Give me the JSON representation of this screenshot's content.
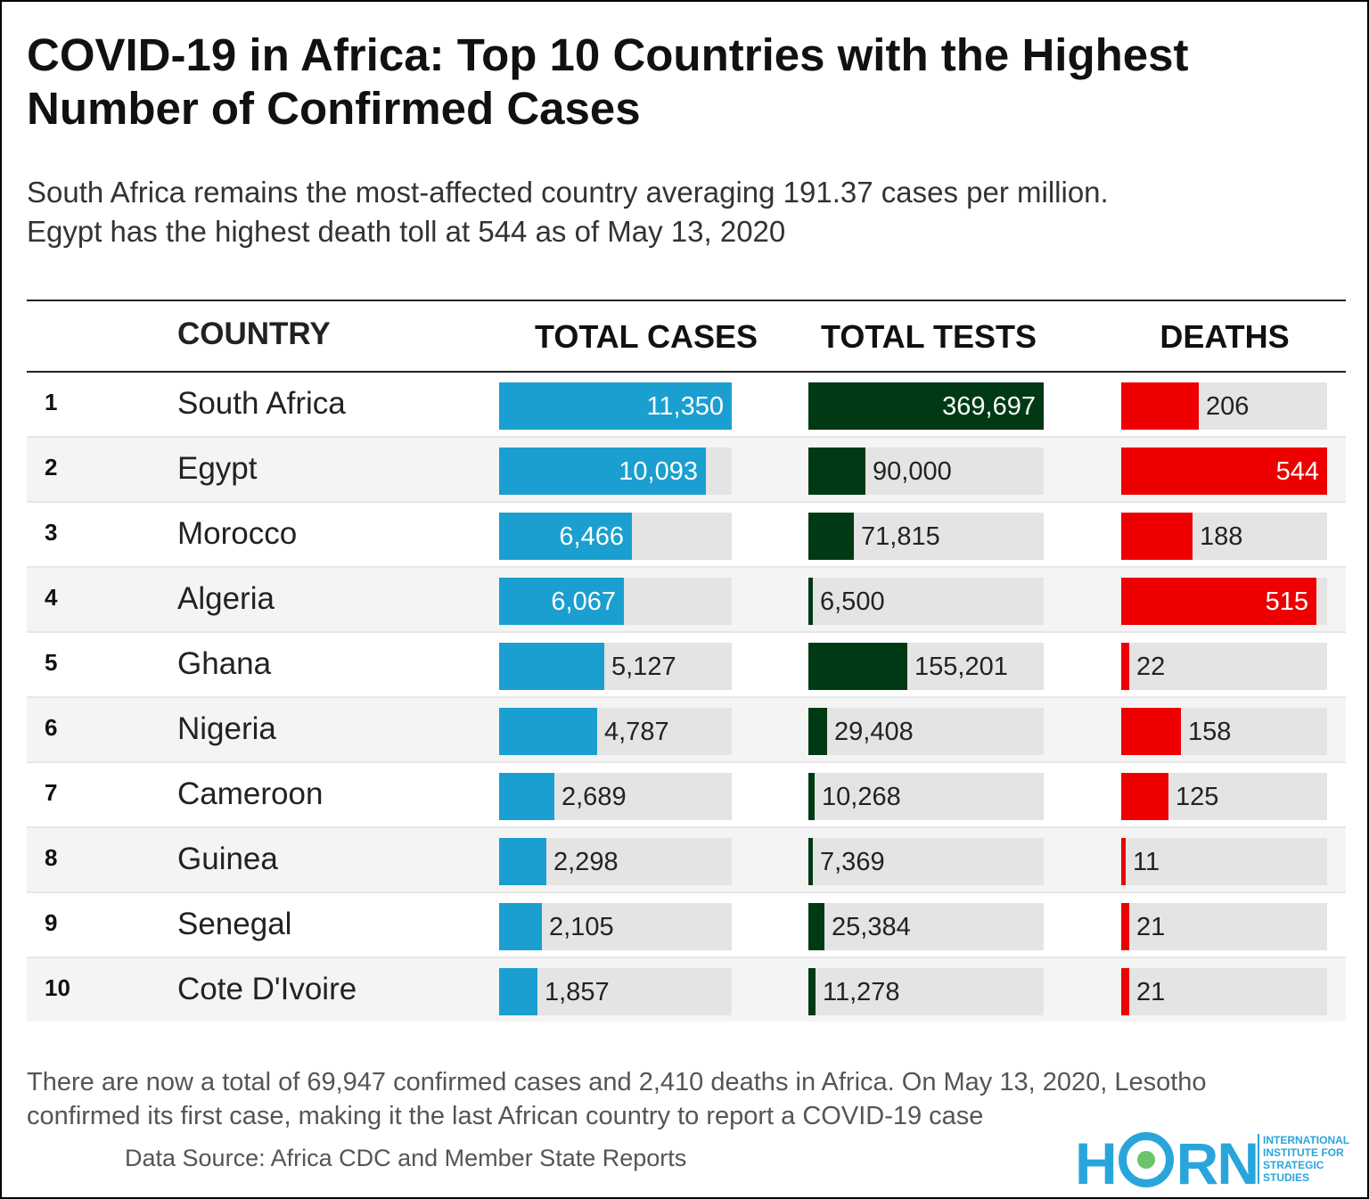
{
  "header": {
    "title": "COVID-19 in Africa: Top 10 Countries with the Highest Number of Confirmed Cases",
    "subtitle_line1": "South Africa remains the most-affected country averaging 191.37 cases per million.",
    "subtitle_line2": "Egypt has the highest death toll at 544 as of May 13, 2020"
  },
  "chart_data": {
    "type": "table",
    "columns": [
      "",
      "COUNTRY",
      "TOTAL CASES",
      "TOTAL TESTS",
      "DEATHS"
    ],
    "rows": [
      {
        "rank": "1",
        "country": "South Africa",
        "total_cases": 11350,
        "total_tests": 369697,
        "deaths": 206
      },
      {
        "rank": "2",
        "country": "Egypt",
        "total_cases": 10093,
        "total_tests": 90000,
        "deaths": 544
      },
      {
        "rank": "3",
        "country": "Morocco",
        "total_cases": 6466,
        "total_tests": 71815,
        "deaths": 188
      },
      {
        "rank": "4",
        "country": "Algeria",
        "total_cases": 6067,
        "total_tests": 6500,
        "deaths": 515
      },
      {
        "rank": "5",
        "country": "Ghana",
        "total_cases": 5127,
        "total_tests": 155201,
        "deaths": 22
      },
      {
        "rank": "6",
        "country": "Nigeria",
        "total_cases": 4787,
        "total_tests": 29408,
        "deaths": 158
      },
      {
        "rank": "7",
        "country": "Cameroon",
        "total_cases": 2689,
        "total_tests": 10268,
        "deaths": 125
      },
      {
        "rank": "8",
        "country": "Guinea",
        "total_cases": 2298,
        "total_tests": 7369,
        "deaths": 11
      },
      {
        "rank": "9",
        "country": "Senegal",
        "total_cases": 2105,
        "total_tests": 25384,
        "deaths": 21
      },
      {
        "rank": "10",
        "country": "Cote D'Ivoire",
        "total_cases": 1857,
        "total_tests": 11278,
        "deaths": 21
      }
    ],
    "bar_max": {
      "total_cases": 11350,
      "total_tests": 369697,
      "deaths": 544
    },
    "colors": {
      "total_cases": "#1a9fd0",
      "total_tests": "#003a14",
      "deaths": "#ee0000",
      "track": "#e4e4e4"
    }
  },
  "footer": {
    "note_line1": "There are now a total of 69,947 confirmed cases and 2,410 deaths in Africa. On May 13, 2020, Lesotho",
    "note_line2": "confirmed its first case, making it the last African country to report a COVID-19 case",
    "source": "Data Source: Africa CDC and Member State Reports"
  },
  "logo": {
    "word_h": "H",
    "word_rn": "RN",
    "tagline": [
      "INTERNATIONAL",
      "INSTITUTE FOR",
      "STRATEGIC",
      "STUDIES"
    ],
    "color": "#2aa5dc"
  }
}
